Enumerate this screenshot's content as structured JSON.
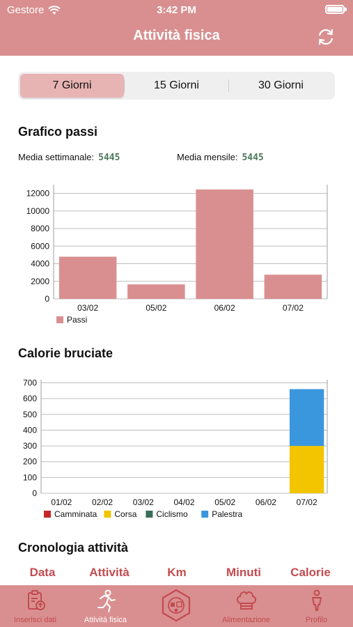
{
  "status": {
    "carrier": "Gestore",
    "time": "3:42 PM"
  },
  "header": {
    "title": "Attività fisica"
  },
  "segments": [
    "7 Giorni",
    "15 Giorni",
    "30 Giorni"
  ],
  "steps": {
    "title": "Grafico passi",
    "weekly_label": "Media settimanale:",
    "weekly_value": "5445",
    "monthly_label": "Media mensile:",
    "monthly_value": "5445"
  },
  "calories": {
    "title": "Calorie bruciate"
  },
  "history": {
    "title": "Cronologia attività",
    "columns": [
      "Data",
      "Attività",
      "Km",
      "Minuti",
      "Calorie"
    ]
  },
  "tabs": [
    "Inserisci dati",
    "Attività fisica",
    "",
    "Alimentazione",
    "Profilo"
  ],
  "colors": {
    "primary": "#d98f90",
    "accent": "#c24b4f",
    "camminata": "#c62828",
    "corsa": "#f2c500",
    "ciclismo": "#3a6e58",
    "palestra": "#3a97de"
  },
  "chart_data": [
    {
      "type": "bar",
      "categories": [
        "03/02",
        "05/02",
        "06/02",
        "07/02"
      ],
      "series": [
        {
          "name": "Passi",
          "values": [
            4800,
            1650,
            12450,
            2750
          ]
        }
      ],
      "ylim": [
        0,
        13000
      ],
      "yticks": [
        0,
        2000,
        4000,
        6000,
        8000,
        10000,
        12000
      ],
      "legend": "bottom-left",
      "grid": true
    },
    {
      "type": "bar",
      "stacked": true,
      "categories": [
        "01/02",
        "02/02",
        "03/02",
        "04/02",
        "05/02",
        "06/02",
        "07/02"
      ],
      "series": [
        {
          "name": "Camminata",
          "values": [
            0,
            0,
            0,
            0,
            0,
            0,
            0
          ]
        },
        {
          "name": "Corsa",
          "values": [
            0,
            0,
            0,
            0,
            0,
            0,
            300
          ]
        },
        {
          "name": "Ciclismo",
          "values": [
            0,
            0,
            0,
            0,
            0,
            0,
            0
          ]
        },
        {
          "name": "Palestra",
          "values": [
            0,
            0,
            0,
            0,
            0,
            0,
            360
          ]
        }
      ],
      "ylim": [
        0,
        720
      ],
      "yticks": [
        0,
        100,
        200,
        300,
        400,
        500,
        600,
        700
      ],
      "legend": "bottom-left",
      "grid": true
    }
  ]
}
